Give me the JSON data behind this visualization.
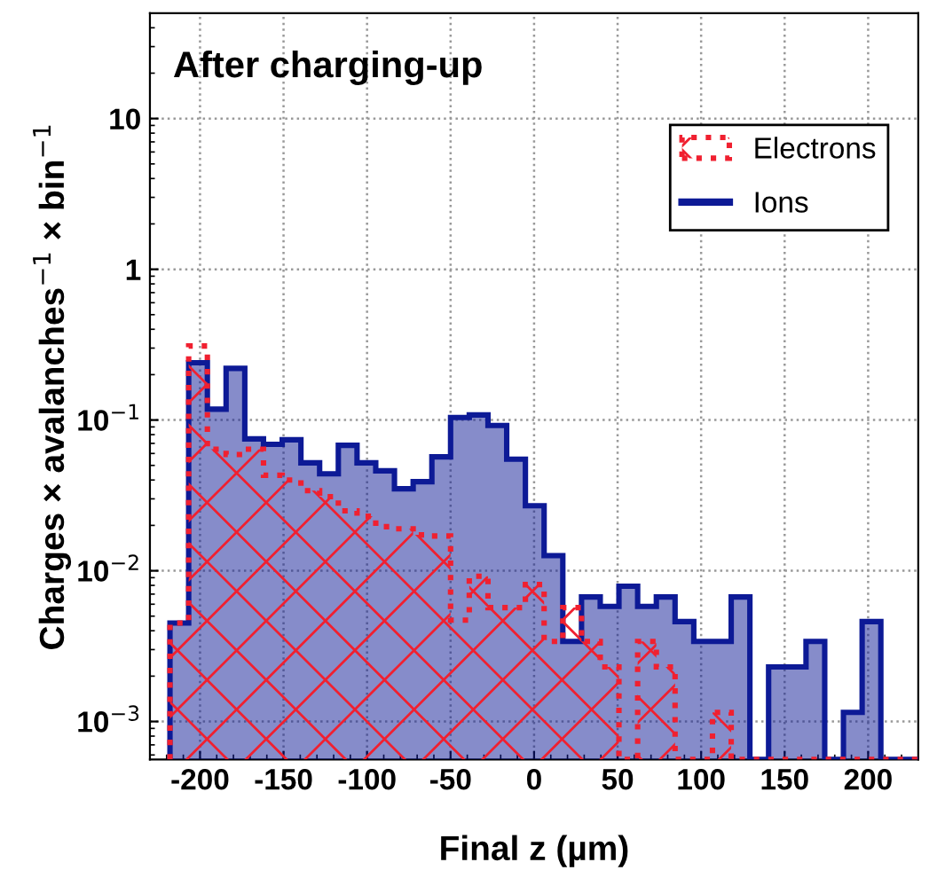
{
  "chart_data": {
    "type": "histogram",
    "title": "After charging-up",
    "xlabel": "Final z (µm)",
    "ylabel": "Charges × avalanches$^{−1}$ × bin$^{−1}$",
    "bins": [
      -218,
      -206.8,
      -195.6,
      -184.4,
      -173.2,
      -162,
      -150.8,
      -139.6,
      -128.4,
      -117.2,
      -106,
      -94.8,
      -83.6,
      -72.4,
      -61.2,
      -50,
      -38.8,
      -27.6,
      -16.4,
      -5.2,
      6,
      17.2,
      28.4,
      39.6,
      50.8,
      62,
      73.2,
      84.4,
      95.6,
      106.8,
      118,
      129.2,
      140.4,
      151.6,
      162.8,
      174,
      185.2,
      196.4,
      207.6,
      218.8,
      230
    ],
    "series": [
      {
        "name": "Electrons",
        "color": "#f02030",
        "line_style": "dotted",
        "values": [
          0.0045,
          0.31,
          0.064,
          0.059,
          0.064,
          0.043,
          0.04,
          0.034,
          0.031,
          0.025,
          0.023,
          0.0196,
          0.019,
          0.0173,
          0.017,
          0.0047,
          0.0092,
          0.0057,
          0.0057,
          0.0081,
          0.0034,
          0.0057,
          0.0034,
          0.0023,
          null,
          0.0034,
          0.0023,
          null,
          null,
          0.00115,
          null,
          null,
          null,
          null,
          null,
          null,
          null,
          null,
          null,
          null
        ]
      },
      {
        "name": "Ions",
        "color": "#0d1a96",
        "line_style": "solid",
        "values": [
          0.0045,
          0.24,
          0.118,
          0.22,
          0.075,
          0.069,
          0.074,
          0.052,
          0.044,
          0.068,
          0.052,
          0.046,
          0.035,
          0.039,
          0.057,
          0.104,
          0.108,
          0.092,
          0.055,
          0.027,
          0.0126,
          0.0034,
          0.0067,
          0.0058,
          0.0079,
          0.0058,
          0.0067,
          0.0046,
          0.0034,
          0.0034,
          0.0067,
          null,
          0.0023,
          0.0023,
          0.0034,
          null,
          0.00115,
          0.0046,
          null,
          null
        ]
      }
    ],
    "log": "y",
    "xlim": [
      -230,
      230
    ],
    "ylim": [
      0.00056,
      50
    ],
    "xticks": [
      -200,
      -150,
      -100,
      -50,
      0,
      50,
      100,
      150,
      200
    ],
    "yticks": [
      {
        "value": 0.001,
        "label": "10$^{−3}$"
      },
      {
        "value": 0.01,
        "label": "10$^{−2}$"
      },
      {
        "value": 0.1,
        "label": "10$^{−1}$"
      },
      1,
      10
    ],
    "grid": true,
    "legend": "top right"
  }
}
